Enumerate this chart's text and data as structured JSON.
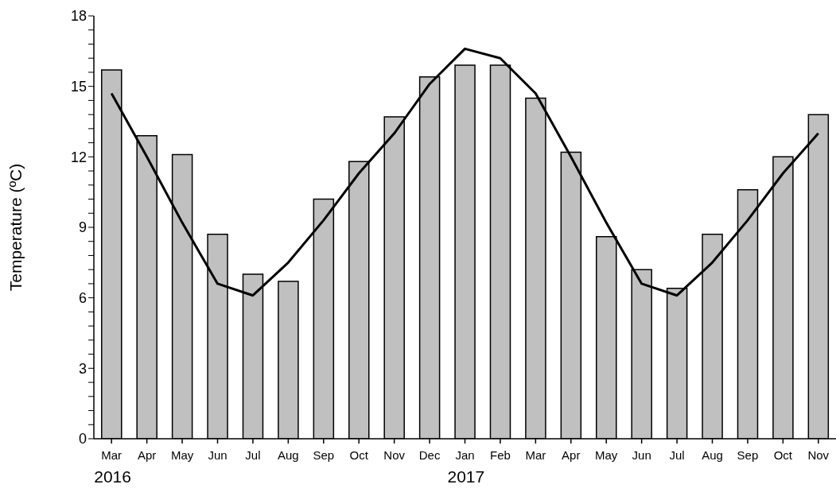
{
  "chart_data": {
    "type": "bar",
    "ylabel": "Temperature (ºC)",
    "categories": [
      "Mar",
      "Apr",
      "May",
      "Jun",
      "Jul",
      "Aug",
      "Sep",
      "Oct",
      "Nov",
      "Dec",
      "Jan",
      "Feb",
      "Mar",
      "Apr",
      "May",
      "Jun",
      "Jul",
      "Aug",
      "Sep",
      "Oct",
      "Nov"
    ],
    "series": [
      {
        "color": "#c0c0c0",
        "values": [
          15.7,
          12.9,
          12.1,
          8.7,
          7.0,
          6.7,
          10.2,
          11.8,
          13.7,
          15.4,
          15.9,
          15.9,
          14.5,
          12.2,
          8.6,
          7.2,
          6.4,
          8.7,
          10.6,
          12.0,
          13.8
        ]
      },
      {
        "type": "line",
        "color": "#000000",
        "values": [
          14.7,
          12.0,
          9.2,
          6.6,
          6.1,
          7.5,
          9.3,
          11.3,
          13.0,
          15.1,
          16.6,
          16.2,
          14.7,
          12.0,
          9.2,
          6.6,
          6.1,
          7.5,
          9.3,
          11.3,
          13.0
        ]
      }
    ],
    "ylim": [
      0,
      18
    ],
    "yticks": [
      0,
      {
        "value": 0.6,
        "label": null
      },
      {
        "value": 1.2,
        "label": null
      },
      {
        "value": 1.8,
        "label": null
      },
      {
        "value": 2.4,
        "label": null
      },
      3,
      {
        "value": 3.6,
        "label": null
      },
      {
        "value": 4.2,
        "label": null
      },
      {
        "value": 4.8,
        "label": null
      },
      {
        "value": 5.4,
        "label": null
      },
      6,
      {
        "value": 6.6,
        "label": null
      },
      {
        "value": 7.2,
        "label": null
      },
      {
        "value": 7.8,
        "label": null
      },
      {
        "value": 8.4,
        "label": null
      },
      9,
      {
        "value": 9.6,
        "label": null
      },
      {
        "value": 10.2,
        "label": null
      },
      {
        "value": 10.8,
        "label": null
      },
      {
        "value": 11.4,
        "label": null
      },
      12,
      {
        "value": 12.6,
        "label": null
      },
      {
        "value": 13.2,
        "label": null
      },
      {
        "value": 13.8,
        "label": null
      },
      {
        "value": 14.4,
        "label": null
      },
      15,
      {
        "value": 15.6,
        "label": null
      },
      {
        "value": 16.2,
        "label": null
      },
      {
        "value": 16.8,
        "label": null
      },
      {
        "value": 17.4,
        "label": null
      },
      18
    ],
    "annotations": [
      "2016",
      "2017"
    ],
    "grid": false
  }
}
